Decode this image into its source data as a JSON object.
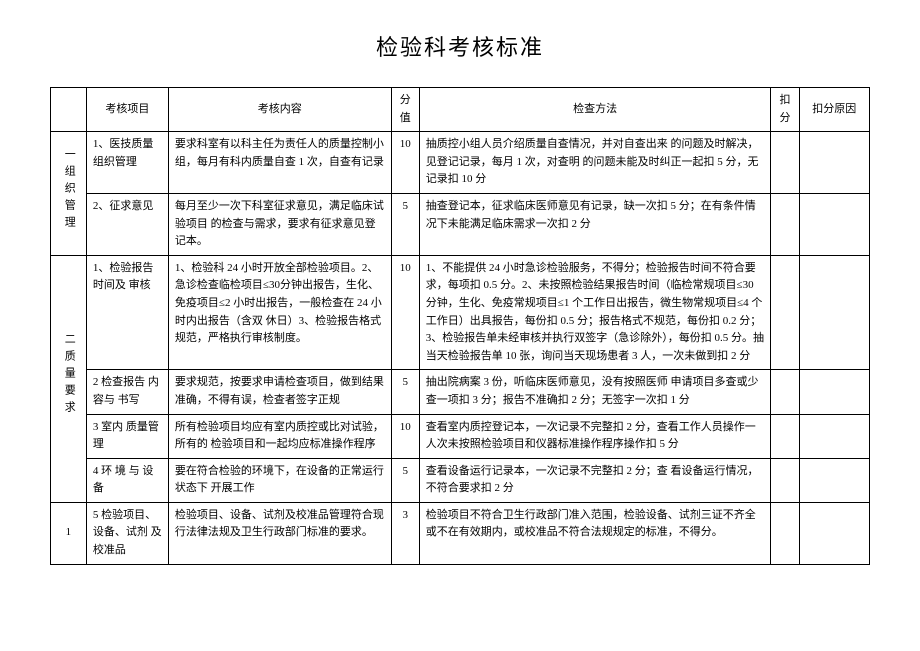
{
  "title": "检验科考核标准",
  "headers": {
    "col1": "",
    "col2": "考核项目",
    "col3": "考核内容",
    "col4": "分值",
    "col5": "检查方法",
    "col6": "扣分",
    "col7": "扣分原因"
  },
  "sections": [
    {
      "section_label": "一组织管理",
      "section_rows": 2,
      "rows": [
        {
          "item": "1、医技质量 组织管理",
          "content": "要求科室有以科主任为责任人的质量控制小组，每月有科内质量自查 1 次，自查有记录",
          "score": "10",
          "method": "抽质控小组人员介绍质量自查情况，并对自查出来 的问题及时解决，见登记记录，每月 1 次，对查明 的问题未能及时纠正一起扣 5 分，无记录扣 10 分"
        },
        {
          "item": "2、征求意见",
          "content": "每月至少一次下科室征求意见，满足临床试验项目 的检查与需求，要求有征求意见登记本。",
          "score": "5",
          "method": "抽查登记本，征求临床医师意见有记录，缺一次扣 5 分；在有条件情况下未能满足临床需求一次扣 2 分"
        }
      ]
    },
    {
      "section_label": "二质量要求",
      "section_rows": 4,
      "rows": [
        {
          "item": "1、检验报告 时间及 审核",
          "content": "1、检验科 24 小时开放全部检验项目。2、急诊检查临检项目≤30分钟出报告，生化、免疫项目≤2 小时出报告，一般检查在 24 小时内出报告（含双 休日）3、检验报告格式规范，严格执行审核制度。",
          "score": "10",
          "method": "1、不能提供 24 小时急诊检验服务，不得分；检验报告时间不符合要求，每项扣 0.5 分。2、未按照检验结果报告时间（临检常规项目≤30 分钟，生化、免疫常规项目≤1 个工作日出报告，微生物常规项目≤4 个工作日）出具报告，每份扣 0.5 分；报告格式不规范，每份扣 0.2 分；3、检验报告单未经审核并执行双签字（急诊除外），每份扣 0.5 分。抽当天检验报告单 10 张，询问当天现场患者 3 人，一次未做到扣 2 分"
        },
        {
          "item": "2 检查报告 内容与 书写",
          "content": "要求规范，按要求申请检查项目，做到结果准确，不得有误，检查者签字正规",
          "score": "5",
          "method": "抽出院病案 3 份，听临床医师意见，没有按照医师 申请项目多查或少查一项扣 3 分；报告不准确扣 2 分；无签字一次扣 1 分"
        },
        {
          "item": "3 室内 质量管理",
          "content": "所有检验项目均应有室内质控或比对试验，所有的 检验项目和一起均应标准操作程序",
          "score": "10",
          "method": "查看室内质控登记本，一次记录不完整扣 2 分，查看工作人员操作一人次未按照检验项目和仪器标准操作程序操作扣 5 分"
        },
        {
          "item": "4 环 境 与 设备",
          "content": "要在符合检验的环境下，在设备的正常运行状态下 开展工作",
          "score": "5",
          "method": "查看设备运行记录本，一次记录不完整扣 2 分；查 看设备运行情况，不符合要求扣 2 分"
        }
      ]
    },
    {
      "section_label": "1",
      "section_rows": 1,
      "rows": [
        {
          "item": "5 检验项目、设备、试剂 及校准品",
          "content": "检验项目、设备、试剂及校准品管理符合现行法律法规及卫生行政部门标准的要求。",
          "score": "3",
          "method": "检验项目不符合卫生行政部门准入范围，检验设备、试剂三证不齐全或不在有效期内，或校准品不符合法规规定的标准，不得分。"
        }
      ]
    }
  ]
}
